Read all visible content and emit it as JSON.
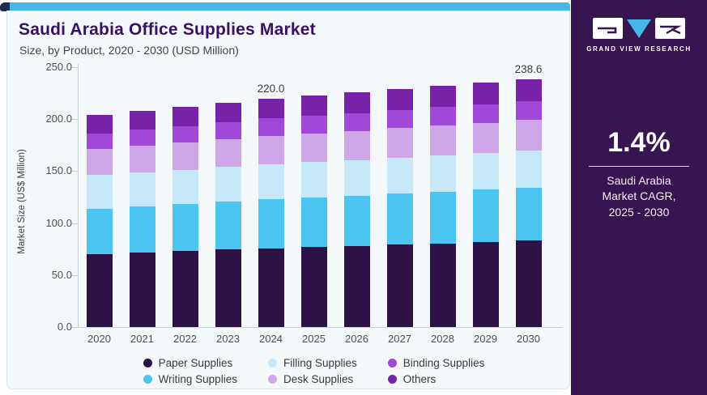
{
  "header": {
    "title": "Saudi Arabia Office Supplies Market",
    "subtitle": "Size, by Product, 2020 - 2030 (USD Million)"
  },
  "sidebar": {
    "brand": "GRAND VIEW RESEARCH",
    "cagr_value": "1.4%",
    "cagr_caption": [
      "Saudi Arabia",
      "Market CAGR,",
      "2025 - 2030"
    ],
    "bg_color": "#371551",
    "accent_color": "#47b6e8"
  },
  "chart_data": {
    "type": "bar",
    "stacked": true,
    "title": "Saudi Arabia Office Supplies Market",
    "subtitle": "Size, by Product, 2020 - 2030 (USD Million)",
    "ylabel": "Market Size (US$ Million)",
    "xlabel": "",
    "ylim": [
      0,
      250
    ],
    "grid": false,
    "legend_position": "bottom",
    "yticks": [
      {
        "value": 0,
        "label": "0.0"
      },
      {
        "value": 50,
        "label": "50.0"
      },
      {
        "value": 100,
        "label": "100.0"
      },
      {
        "value": 150,
        "label": "150.0"
      },
      {
        "value": 200,
        "label": "200.0"
      },
      {
        "value": 250,
        "label": "250.0"
      }
    ],
    "categories": [
      "2020",
      "2021",
      "2022",
      "2023",
      "2024",
      "2025",
      "2026",
      "2027",
      "2028",
      "2029",
      "2030"
    ],
    "series": [
      {
        "name": "Paper Supplies",
        "color": "#2d1245",
        "values": [
          70.1,
          71.5,
          72.9,
          74.4,
          75.9,
          76.9,
          78.1,
          79.3,
          80.5,
          81.7,
          83.0
        ]
      },
      {
        "name": "Writing Supplies",
        "color": "#4cc5f0",
        "values": [
          43.6,
          44.4,
          45.3,
          46.1,
          47.1,
          47.7,
          48.3,
          49.1,
          49.8,
          50.5,
          51.3
        ]
      },
      {
        "name": "Filling Supplies",
        "color": "#c6e8f9",
        "values": [
          32.6,
          32.9,
          33.3,
          33.6,
          33.9,
          34.1,
          34.4,
          34.5,
          34.8,
          35.0,
          35.2
        ]
      },
      {
        "name": "Desk Supplies",
        "color": "#cfa7e9",
        "values": [
          24.7,
          25.3,
          25.8,
          26.4,
          27.0,
          27.4,
          27.9,
          28.4,
          28.9,
          29.4,
          29.9
        ]
      },
      {
        "name": "Binding Supplies",
        "color": "#a148d8",
        "values": [
          15.5,
          15.8,
          16.1,
          16.4,
          16.8,
          17.0,
          17.2,
          17.5,
          17.8,
          18.0,
          18.3
        ]
      },
      {
        "name": "Others",
        "color": "#7623a8",
        "values": [
          17.9,
          18.3,
          18.6,
          18.9,
          19.3,
          19.5,
          19.7,
          20.0,
          20.3,
          20.5,
          20.9
        ]
      }
    ],
    "annotations": [
      {
        "category": "2024",
        "label": "220.0"
      },
      {
        "category": "2030",
        "label": "238.6"
      }
    ]
  }
}
